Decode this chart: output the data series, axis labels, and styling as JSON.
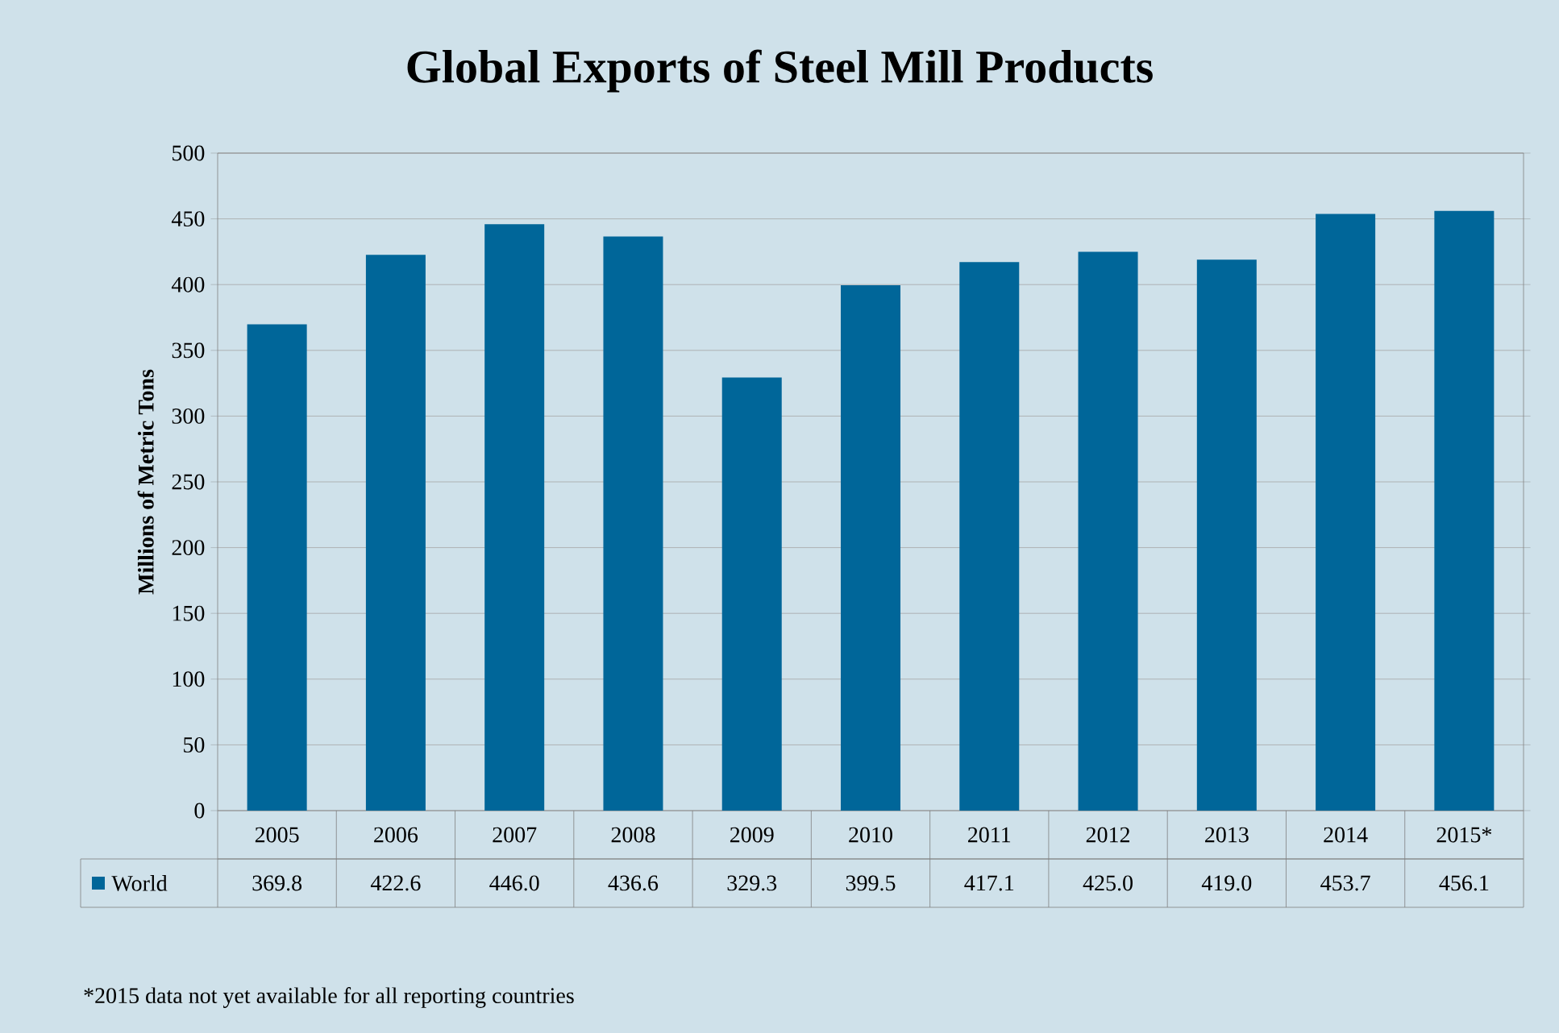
{
  "chart_data": {
    "type": "bar",
    "title": "Global Exports of Steel Mill Products",
    "ylabel": "Millions of Metric Tons",
    "categories": [
      "2005",
      "2006",
      "2007",
      "2008",
      "2009",
      "2010",
      "2011",
      "2012",
      "2013",
      "2014",
      "2015*"
    ],
    "series": [
      {
        "name": "World",
        "color": "#006699",
        "values": [
          369.8,
          422.6,
          446.0,
          436.6,
          329.3,
          399.5,
          417.1,
          425.0,
          419.0,
          453.7,
          456.1
        ],
        "value_labels": [
          "369.8",
          "422.6",
          "446.0",
          "436.6",
          "329.3",
          "399.5",
          "417.1",
          "425.0",
          "419.0",
          "453.7",
          "456.1"
        ]
      }
    ],
    "ylim": [
      0,
      500
    ],
    "yticks": [
      0,
      50,
      100,
      150,
      200,
      250,
      300,
      350,
      400,
      450,
      500
    ],
    "grid": "y",
    "legend": "bottom",
    "annotations": [
      "*2015 data not yet available for all reporting countries"
    ]
  }
}
